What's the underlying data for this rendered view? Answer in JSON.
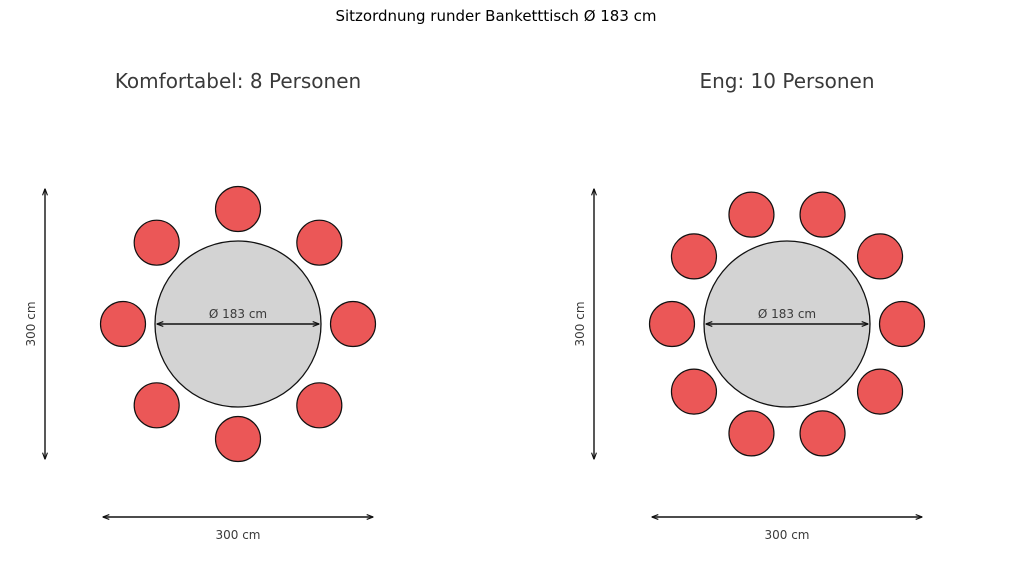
{
  "title": "Sitzordnung runder Banketttisch Ø 183 cm",
  "colors": {
    "chair": "#eb5757",
    "table": "#d3d3d3",
    "outline": "#111111",
    "text": "#3a3a3a"
  },
  "panels": [
    {
      "subtitle": "Komfortabel: 8 Personen",
      "seats": 8,
      "table_label": "Ø 183 cm",
      "width_label": "300 cm",
      "height_label": "300 cm"
    },
    {
      "subtitle": "Eng: 10 Personen",
      "seats": 10,
      "table_label": "Ø 183 cm",
      "width_label": "300 cm",
      "height_label": "300 cm"
    }
  ]
}
